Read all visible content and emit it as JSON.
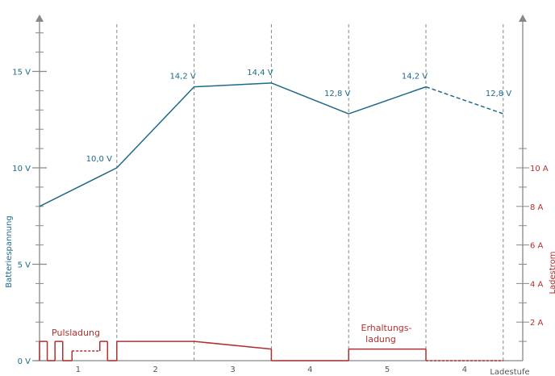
{
  "chart_data": {
    "type": "line",
    "xlabel": "Ladestufe",
    "stage_labels": [
      "1",
      "2",
      "3",
      "4",
      "5",
      "4"
    ],
    "colors": {
      "voltage": "#1d6a8a",
      "current": "#b03030",
      "axis": "#888888",
      "grid": "#888888"
    },
    "voltage_axis": {
      "label": "Batteriespannung",
      "range": [
        0,
        17.5
      ],
      "ticks": [
        0,
        5,
        10,
        15
      ],
      "tick_labels": [
        "0 V",
        "5 V",
        "10 V",
        "15 V"
      ],
      "minor_step": 1
    },
    "current_axis": {
      "label": "Ladestrom",
      "range": [
        0,
        11
      ],
      "ticks": [
        2,
        4,
        6,
        8,
        10
      ],
      "tick_labels": [
        "2 A",
        "4 A",
        "6 A",
        "8 A",
        "10 A"
      ]
    },
    "series": [
      {
        "name": "Batteriespannung",
        "color": "#1d6a8a",
        "x": [
          0,
          1,
          2,
          3,
          4,
          5,
          6
        ],
        "values": [
          8.0,
          10.0,
          14.2,
          14.4,
          12.8,
          14.2,
          12.8
        ],
        "dashed_from_index": 5,
        "labels": [
          {
            "index": 1,
            "text": "10,0 V"
          },
          {
            "index": 2,
            "text": "14,2 V"
          },
          {
            "index": 3,
            "text": "14,4 V"
          },
          {
            "index": 4,
            "text": "12,8 V"
          },
          {
            "index": 5,
            "text": "14,2 V"
          },
          {
            "index": 6,
            "text": "12,8 V"
          }
        ]
      },
      {
        "name": "Ladestrom",
        "color": "#b03030",
        "points": [
          [
            0,
            0
          ],
          [
            0,
            1
          ],
          [
            0.1,
            1
          ],
          [
            0.1,
            0
          ],
          [
            0.2,
            0
          ],
          [
            0.2,
            1
          ],
          [
            0.3,
            1
          ],
          [
            0.3,
            0
          ],
          [
            0.42,
            0
          ],
          [
            0.42,
            0.5
          ],
          [
            0.78,
            0.5
          ],
          [
            0.78,
            1
          ],
          [
            0.88,
            1
          ],
          [
            0.88,
            0
          ],
          [
            1,
            0
          ],
          [
            1,
            1
          ],
          [
            2,
            1
          ],
          [
            3,
            0.6
          ],
          [
            3,
            0
          ],
          [
            4,
            0
          ],
          [
            4,
            0.6
          ],
          [
            5,
            0.6
          ],
          [
            5,
            0
          ],
          [
            6,
            0
          ]
        ],
        "dashed_segments": [
          [
            9,
            10
          ],
          [
            22,
            23
          ]
        ]
      }
    ],
    "annotations": [
      {
        "text": "Pulsladung"
      },
      {
        "text": "Erhaltungs-"
      },
      {
        "text": "ladung"
      }
    ]
  }
}
